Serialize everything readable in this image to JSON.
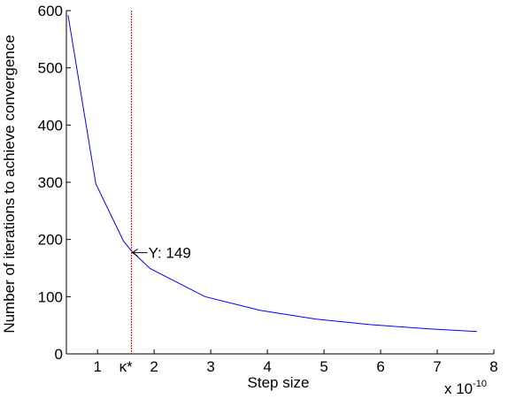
{
  "chart_data": {
    "type": "line",
    "xlabel": "Step size",
    "ylabel": "Number of iterations to achieve convergence",
    "x_multiplier_base": "x 10",
    "x_multiplier_exp": "-10",
    "xlim": [
      0.45,
      8
    ],
    "ylim": [
      0,
      600
    ],
    "xticks": [
      1,
      2,
      3,
      4,
      5,
      6,
      7,
      8
    ],
    "yticks": [
      0,
      100,
      200,
      300,
      400,
      500,
      600
    ],
    "grid": false,
    "series": [
      {
        "color": "#0000ff",
        "x": [
          0.48,
          0.97,
          1.46,
          1.6,
          1.93,
          2.9,
          3.88,
          4.85,
          5.83,
          6.8,
          7.7
        ],
        "y": [
          592,
          297,
          197,
          180,
          149,
          100,
          76,
          61,
          51,
          44,
          39
        ]
      }
    ],
    "vline": {
      "x": 1.6,
      "label": "κ*",
      "color": "#ff0000"
    },
    "annotation": {
      "text": "Y: 149",
      "x": 1.6,
      "y": 180
    }
  }
}
